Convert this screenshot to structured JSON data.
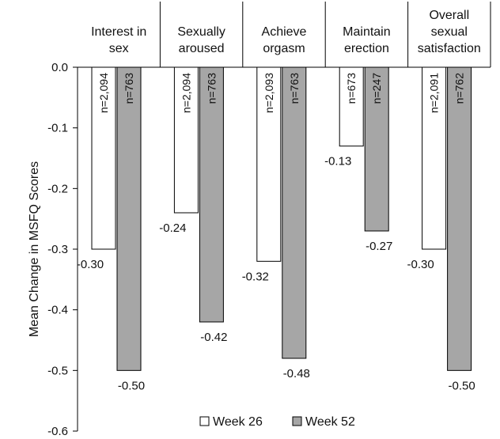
{
  "chart_data": {
    "type": "bar",
    "ylabel": "Mean Change in MSFQ Scores",
    "ylim": [
      -0.6,
      0.0
    ],
    "yticks": [
      "0.0",
      "-0.1",
      "-0.2",
      "-0.3",
      "-0.4",
      "-0.5",
      "-0.6"
    ],
    "grid": false,
    "legend_position": "bottom",
    "categories": [
      [
        "Interest in",
        "sex"
      ],
      [
        "Sexually",
        "aroused"
      ],
      [
        "Achieve",
        "orgasm"
      ],
      [
        "Maintain",
        "erection"
      ],
      [
        "Overall",
        "sexual",
        "satisfaction"
      ]
    ],
    "series": [
      {
        "name": "Week 26",
        "color": "#ffffff",
        "values": [
          -0.3,
          -0.24,
          -0.32,
          -0.13,
          -0.3
        ],
        "value_labels": [
          "-0.30",
          "-0.24",
          "-0.32",
          "-0.13",
          "-0.30"
        ],
        "n_labels": [
          "n=2,094",
          "n=2,094",
          "n=2,093",
          "n=673",
          "n=2,091"
        ]
      },
      {
        "name": "Week 52",
        "color": "#a6a6a6",
        "values": [
          -0.5,
          -0.42,
          -0.48,
          -0.27,
          -0.5
        ],
        "value_labels": [
          "-0.50",
          "-0.42",
          "-0.48",
          "-0.27",
          "-0.50"
        ],
        "n_labels": [
          "n=763",
          "n=763",
          "n=763",
          "n=247",
          "n=762"
        ]
      }
    ]
  }
}
